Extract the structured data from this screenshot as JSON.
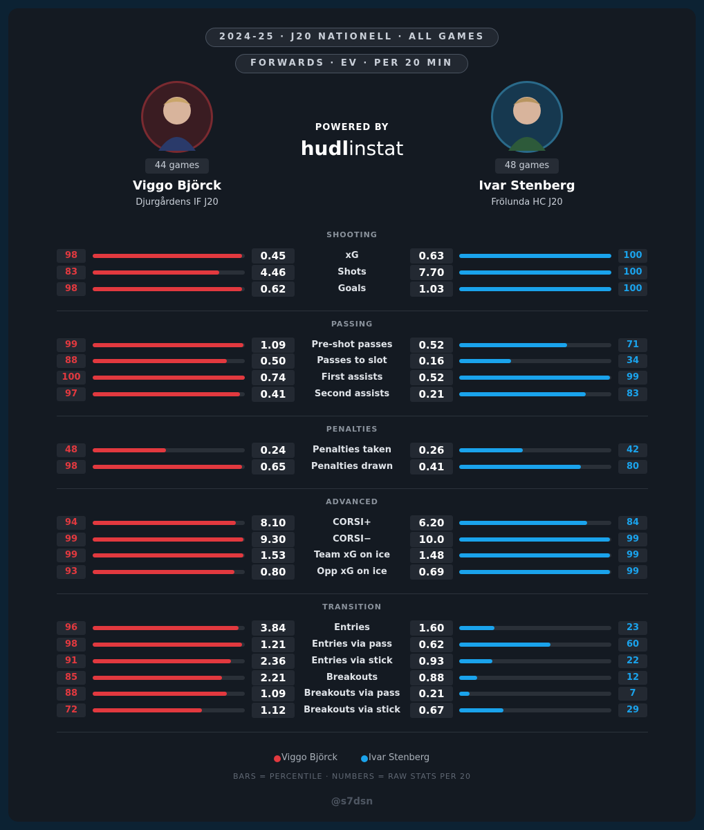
{
  "header": {
    "line1": "2024-25 · J20 NATIONELL · ALL GAMES",
    "line2": "FORWARDS · EV · PER 20 MIN"
  },
  "powered_by": "POWERED BY",
  "brand": {
    "bold": "hudl",
    "light": "instat"
  },
  "bar_range": [
    0,
    100
  ],
  "players": [
    {
      "name": "Viggo Björck",
      "team": "Djurgårdens IF J20",
      "games": "44 games",
      "color": "#e2393f"
    },
    {
      "name": "Ivar Stenberg",
      "team": "Frölunda HC J20",
      "games": "48 games",
      "color": "#1aa3ec"
    }
  ],
  "sections": [
    {
      "title": "SHOOTING",
      "rows": [
        {
          "label": "xG",
          "left": {
            "pct": 98,
            "raw": "0.45"
          },
          "right": {
            "pct": 100,
            "raw": "0.63"
          }
        },
        {
          "label": "Shots",
          "left": {
            "pct": 83,
            "raw": "4.46"
          },
          "right": {
            "pct": 100,
            "raw": "7.70"
          }
        },
        {
          "label": "Goals",
          "left": {
            "pct": 98,
            "raw": "0.62"
          },
          "right": {
            "pct": 100,
            "raw": "1.03"
          }
        }
      ]
    },
    {
      "title": "PASSING",
      "rows": [
        {
          "label": "Pre-shot passes",
          "left": {
            "pct": 99,
            "raw": "1.09"
          },
          "right": {
            "pct": 71,
            "raw": "0.52"
          }
        },
        {
          "label": "Passes to slot",
          "left": {
            "pct": 88,
            "raw": "0.50"
          },
          "right": {
            "pct": 34,
            "raw": "0.16"
          }
        },
        {
          "label": "First assists",
          "left": {
            "pct": 100,
            "raw": "0.74"
          },
          "right": {
            "pct": 99,
            "raw": "0.52"
          }
        },
        {
          "label": "Second assists",
          "left": {
            "pct": 97,
            "raw": "0.41"
          },
          "right": {
            "pct": 83,
            "raw": "0.21"
          }
        }
      ]
    },
    {
      "title": "PENALTIES",
      "rows": [
        {
          "label": "Penalties taken",
          "left": {
            "pct": 48,
            "raw": "0.24"
          },
          "right": {
            "pct": 42,
            "raw": "0.26"
          }
        },
        {
          "label": "Penalties drawn",
          "left": {
            "pct": 98,
            "raw": "0.65"
          },
          "right": {
            "pct": 80,
            "raw": "0.41"
          }
        }
      ]
    },
    {
      "title": "ADVANCED",
      "rows": [
        {
          "label": "CORSI+",
          "left": {
            "pct": 94,
            "raw": "8.10"
          },
          "right": {
            "pct": 84,
            "raw": "6.20"
          }
        },
        {
          "label": "CORSI−",
          "left": {
            "pct": 99,
            "raw": "9.30"
          },
          "right": {
            "pct": 99,
            "raw": "10.0"
          }
        },
        {
          "label": "Team xG on ice",
          "left": {
            "pct": 99,
            "raw": "1.53"
          },
          "right": {
            "pct": 99,
            "raw": "1.48"
          }
        },
        {
          "label": "Opp xG on ice",
          "left": {
            "pct": 93,
            "raw": "0.80"
          },
          "right": {
            "pct": 99,
            "raw": "0.69"
          }
        }
      ]
    },
    {
      "title": "TRANSITION",
      "rows": [
        {
          "label": "Entries",
          "left": {
            "pct": 96,
            "raw": "3.84"
          },
          "right": {
            "pct": 23,
            "raw": "1.60"
          }
        },
        {
          "label": "Entries via pass",
          "left": {
            "pct": 98,
            "raw": "1.21"
          },
          "right": {
            "pct": 60,
            "raw": "0.62"
          }
        },
        {
          "label": "Entries via stick",
          "left": {
            "pct": 91,
            "raw": "2.36"
          },
          "right": {
            "pct": 22,
            "raw": "0.93"
          }
        },
        {
          "label": "Breakouts",
          "left": {
            "pct": 85,
            "raw": "2.21"
          },
          "right": {
            "pct": 12,
            "raw": "0.88"
          }
        },
        {
          "label": "Breakouts via pass",
          "left": {
            "pct": 88,
            "raw": "1.09"
          },
          "right": {
            "pct": 7,
            "raw": "0.21"
          }
        },
        {
          "label": "Breakouts via stick",
          "left": {
            "pct": 72,
            "raw": "1.12"
          },
          "right": {
            "pct": 29,
            "raw": "0.67"
          }
        }
      ]
    }
  ],
  "footer": {
    "note": "BARS = PERCENTILE · NUMBERS = RAW STATS PER 20",
    "handle": "@s7dsn"
  }
}
